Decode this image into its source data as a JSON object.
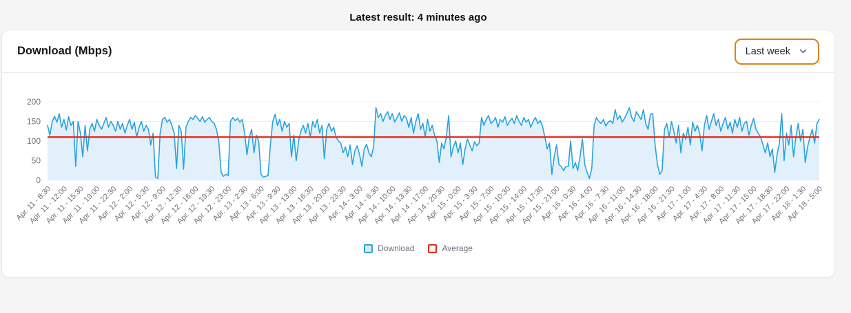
{
  "header": {
    "latest_result": "Latest result: 4 minutes ago"
  },
  "card": {
    "title": "Download (Mbps)",
    "range_selector": {
      "value": "Last week"
    }
  },
  "colors": {
    "accent_orange": "#d9821b",
    "download_line": "#29a3de",
    "download_fill": "#e1f0fa",
    "average_line": "#e02b20",
    "grid": "#ededf0",
    "tick_text": "#71717a",
    "card_bg": "#ffffff",
    "page_bg": "#f5f5f6"
  },
  "chart_data": {
    "type": "line",
    "title": "Download (Mbps)",
    "ylabel": "Mbps",
    "ylim": [
      0,
      200
    ],
    "yticks": [
      0,
      50,
      100,
      150,
      200
    ],
    "grid": true,
    "legend_position": "bottom",
    "x_label_step": 7,
    "x_labels": [
      "Apr. 11 - 8:30",
      "Apr. 11 - 12:00",
      "Apr. 11 - 15:30",
      "Apr. 11 - 19:00",
      "Apr. 11 - 22:30",
      "Apr. 12 - 2:00",
      "Apr. 12 - 5:30",
      "Apr. 12 - 9:00",
      "Apr. 12 - 12:30",
      "Apr. 12 - 16:00",
      "Apr. 12 - 19:30",
      "Apr. 12 - 23:00",
      "Apr. 13 - 2:30",
      "Apr. 13 - 6:00",
      "Apr. 13 - 9:30",
      "Apr. 13 - 13:00",
      "Apr. 13 - 16:30",
      "Apr. 13 - 20:00",
      "Apr. 13 - 23:30",
      "Apr. 14 - 3:00",
      "Apr. 14 - 6:30",
      "Apr. 14 - 10:00",
      "Apr. 14 - 13:30",
      "Apr. 14 - 17:00",
      "Apr. 14 - 20:30",
      "Apr. 15 - 0:00",
      "Apr. 15 - 3:30",
      "Apr. 15 - 7:00",
      "Apr. 15 - 10:30",
      "Apr. 15 - 14:00",
      "Apr. 15 - 17:30",
      "Apr. 15 - 21:00",
      "Apr. 16 - 0:30",
      "Apr. 16 - 4:00",
      "Apr. 16 - 7:30",
      "Apr. 16 - 11:00",
      "Apr. 16 - 14:30",
      "Apr. 16 - 18:00",
      "Apr. 16 - 21:30",
      "Apr. 17 - 1:00",
      "Apr. 17 - 4:30",
      "Apr. 17 - 8:00",
      "Apr. 17 - 11:30",
      "Apr. 17 - 15:00",
      "Apr. 17 - 18:30",
      "Apr. 17 - 22:00",
      "Apr. 18 - 1:30",
      "Apr. 18 - 5:00"
    ],
    "series": [
      {
        "name": "Download",
        "color": "#29a3de",
        "fill": "#e1f0fa",
        "values": [
          140,
          115,
          150,
          163,
          148,
          170,
          135,
          155,
          128,
          162,
          140,
          150,
          35,
          150,
          120,
          60,
          140,
          75,
          130,
          145,
          125,
          155,
          140,
          130,
          145,
          160,
          135,
          150,
          140,
          125,
          150,
          130,
          145,
          120,
          140,
          155,
          130,
          148,
          110,
          135,
          150,
          125,
          140,
          130,
          90,
          120,
          8,
          5,
          120,
          155,
          160,
          148,
          155,
          140,
          120,
          30,
          140,
          125,
          28,
          135,
          150,
          160,
          155,
          165,
          158,
          150,
          162,
          148,
          155,
          160,
          150,
          145,
          130,
          100,
          20,
          10,
          15,
          12,
          150,
          160,
          152,
          158,
          148,
          155,
          120,
          65,
          110,
          130,
          70,
          115,
          100,
          15,
          8,
          10,
          12,
          90,
          150,
          168,
          140,
          155,
          125,
          150,
          135,
          145,
          60,
          115,
          50,
          100,
          125,
          140,
          120,
          145,
          110,
          150,
          135,
          155,
          120,
          140,
          55,
          130,
          145,
          125,
          135,
          110,
          100,
          95,
          70,
          85,
          60,
          90,
          40,
          75,
          88,
          65,
          35,
          80,
          92,
          70,
          60,
          85,
          185,
          160,
          170,
          150,
          165,
          175,
          155,
          170,
          148,
          160,
          172,
          150,
          165,
          158,
          135,
          160,
          120,
          150,
          170,
          130,
          145,
          110,
          155,
          125,
          140,
          115,
          100,
          45,
          95,
          80,
          110,
          165,
          60,
          85,
          100,
          70,
          95,
          40,
          80,
          105,
          90,
          75,
          98,
          88,
          95,
          160,
          140,
          155,
          165,
          145,
          150,
          160,
          135,
          155,
          148,
          162,
          140,
          150,
          158,
          145,
          165,
          150,
          140,
          160,
          148,
          155,
          135,
          150,
          160,
          145,
          152,
          138,
          110,
          80,
          95,
          15,
          60,
          90,
          40,
          35,
          25,
          35,
          35,
          100,
          30,
          45,
          25,
          60,
          105,
          40,
          20,
          5,
          30,
          140,
          160,
          150,
          145,
          155,
          138,
          148,
          152,
          145,
          180,
          155,
          165,
          148,
          158,
          170,
          185,
          160,
          150,
          175,
          165,
          155,
          180,
          145,
          130,
          168,
          170,
          90,
          40,
          15,
          25,
          130,
          145,
          110,
          150,
          125,
          95,
          140,
          70,
          120,
          105,
          135,
          90,
          148,
          125,
          140,
          120,
          75,
          140,
          165,
          130,
          150,
          170,
          140,
          155,
          125,
          145,
          160,
          130,
          148,
          120,
          155,
          135,
          160,
          125,
          145,
          150,
          115,
          140,
          158,
          130,
          120,
          110,
          90,
          70,
          95,
          60,
          80,
          20,
          65,
          95,
          170,
          50,
          120,
          90,
          140,
          60,
          110,
          145,
          100,
          130,
          45,
          85,
          110,
          130,
          95,
          145,
          155
        ]
      }
    ],
    "average": {
      "name": "Average",
      "value": 110,
      "color": "#e02b20"
    },
    "legend": [
      {
        "label": "Download",
        "color": "#29a3de",
        "fill": "#d9ecf9"
      },
      {
        "label": "Average",
        "color": "#e02b20",
        "fill": "#fdf6ee"
      }
    ]
  }
}
